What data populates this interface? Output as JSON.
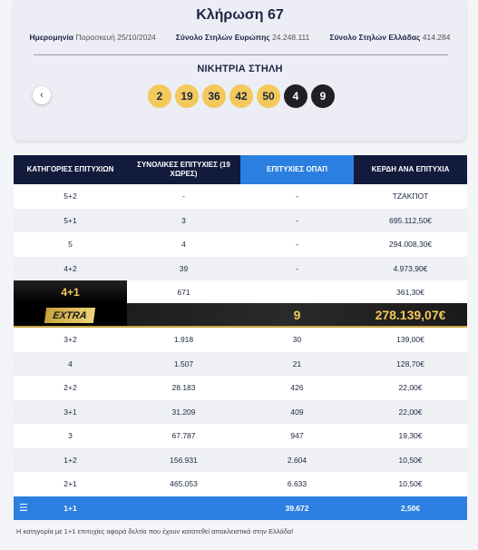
{
  "draw": {
    "title": "Κλήρωση 67",
    "date_label": "Ημερομηνία",
    "date_value": "Παρασκευή 25/10/2024",
    "eu_label": "Σύνολο Στηλών Ευρώπης",
    "eu_value": "24.248.111",
    "gr_label": "Σύνολο Στηλών Ελλάδας",
    "gr_value": "414.284",
    "winning_title": "ΝΙΚΗΤΡΙΑ ΣΤΗΛΗ",
    "prev_icon": "‹",
    "balls": [
      "2",
      "19",
      "36",
      "42",
      "50"
    ],
    "stars": [
      "4",
      "9"
    ]
  },
  "table": {
    "headers": {
      "category": "ΚΑΤΗΓΟΡΙΕΣ ΕΠΙΤΥΧΙΩΝ",
      "total": "ΣΥΝΟΛΙΚΕΣ ΕΠΙΤΥΧΙΕΣ (19 ΧΩΡΕΣ)",
      "opap": "ΕΠΙΤΥΧΙΕΣ ΟΠΑΠ",
      "prize": "ΚΕΡΔΗ ΑΝΑ ΕΠΙΤΥΧΙΑ"
    },
    "rows_top": [
      {
        "cat": "5+2",
        "total": "-",
        "opap": "-",
        "prize": "ΤΖΑΚΠΟΤ"
      },
      {
        "cat": "5+1",
        "total": "3",
        "opap": "-",
        "prize": "695.112,50€"
      },
      {
        "cat": "5",
        "total": "4",
        "opap": "-",
        "prize": "294.008,30€"
      },
      {
        "cat": "4+2",
        "total": "39",
        "opap": "-",
        "prize": "4.973,90€"
      }
    ],
    "extra": {
      "cat": "4+1",
      "total": "671",
      "opap": "",
      "prize": "361,30€",
      "logo": "EXTRA",
      "extra_opap": "9",
      "extra_prize": "278.139,07€"
    },
    "rows_bottom": [
      {
        "cat": "3+2",
        "total": "1.918",
        "opap": "30",
        "prize": "139,00€"
      },
      {
        "cat": "4",
        "total": "1.507",
        "opap": "21",
        "prize": "128,70€"
      },
      {
        "cat": "2+2",
        "total": "28.183",
        "opap": "426",
        "prize": "22,00€"
      },
      {
        "cat": "3+1",
        "total": "31.209",
        "opap": "409",
        "prize": "22,00€"
      },
      {
        "cat": "3",
        "total": "67.787",
        "opap": "947",
        "prize": "19,30€"
      },
      {
        "cat": "1+2",
        "total": "156.931",
        "opap": "2.604",
        "prize": "10,50€"
      },
      {
        "cat": "2+1",
        "total": "465.053",
        "opap": "6.633",
        "prize": "10,50€"
      }
    ],
    "last_row": {
      "cat": "1+1",
      "total": "",
      "opap": "39.672",
      "prize": "2,50€",
      "icon": "menu-icon"
    }
  },
  "footnote": "Η κατηγορία με 1+1 επιτυχίες αφορά δελτία που έχουν κατατεθεί αποκλειστικά στην Ελλάδα!"
}
